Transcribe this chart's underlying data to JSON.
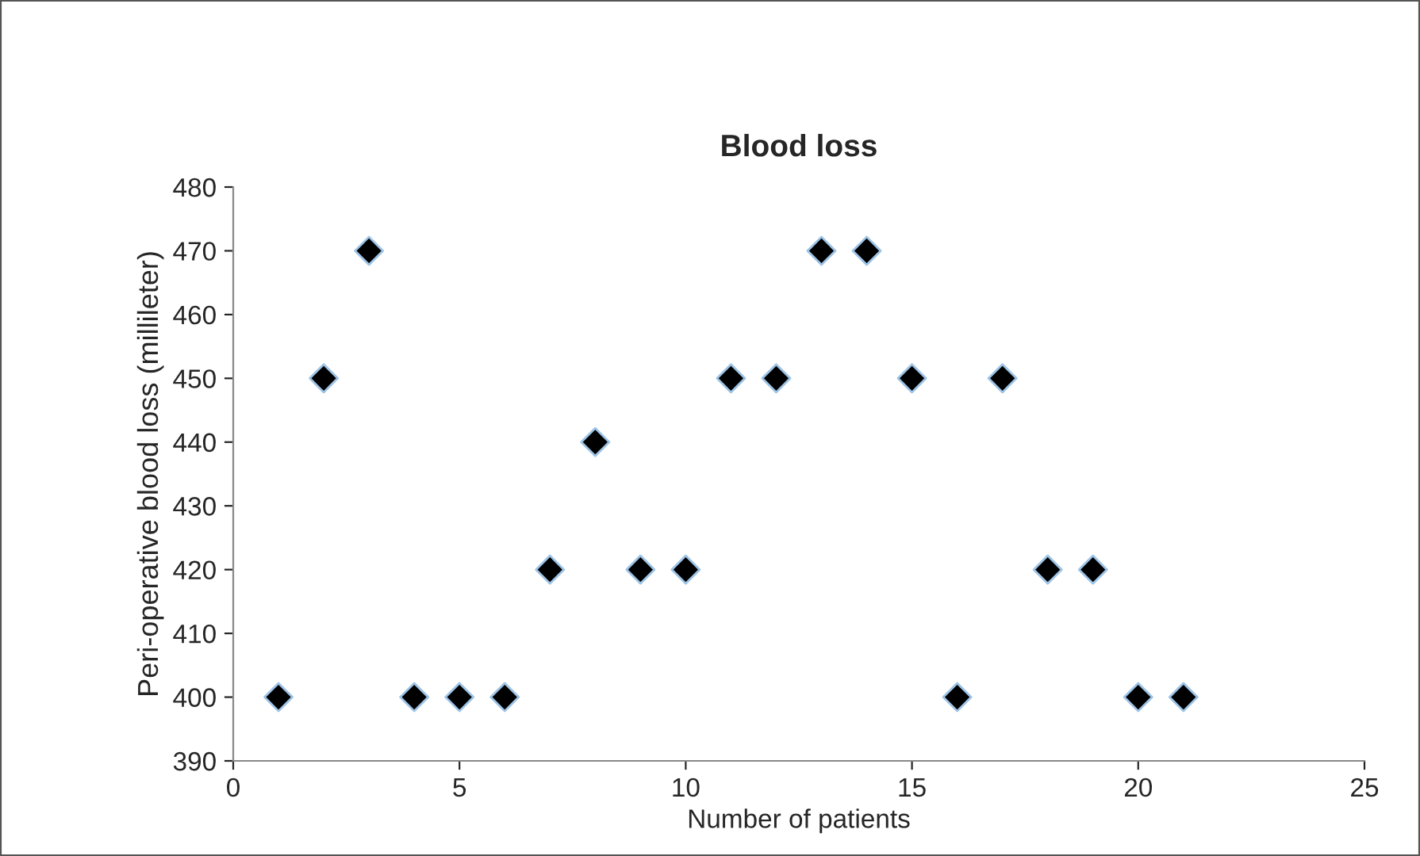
{
  "chart_data": {
    "type": "scatter",
    "title": "Blood loss",
    "xlabel": "Number of patients",
    "ylabel": "Peri-operative blood loss (millileter)",
    "x": [
      1,
      2,
      3,
      4,
      5,
      6,
      7,
      8,
      9,
      10,
      11,
      12,
      13,
      14,
      15,
      16,
      17,
      18,
      19,
      20,
      21
    ],
    "series": [
      {
        "color": "#000000",
        "values": [
          400,
          450,
          470,
          400,
          400,
          400,
          420,
          440,
          420,
          420,
          450,
          450,
          470,
          470,
          450,
          400,
          450,
          420,
          420,
          400,
          400
        ]
      }
    ],
    "xlim": [
      0,
      25
    ],
    "xticks": [
      0,
      5,
      10,
      15,
      20,
      25
    ],
    "ylim": [
      390,
      480
    ],
    "yticks": [
      390,
      400,
      410,
      420,
      430,
      440,
      450,
      460,
      470,
      480
    ],
    "marker": "diamond",
    "grid": false,
    "legend": false
  }
}
